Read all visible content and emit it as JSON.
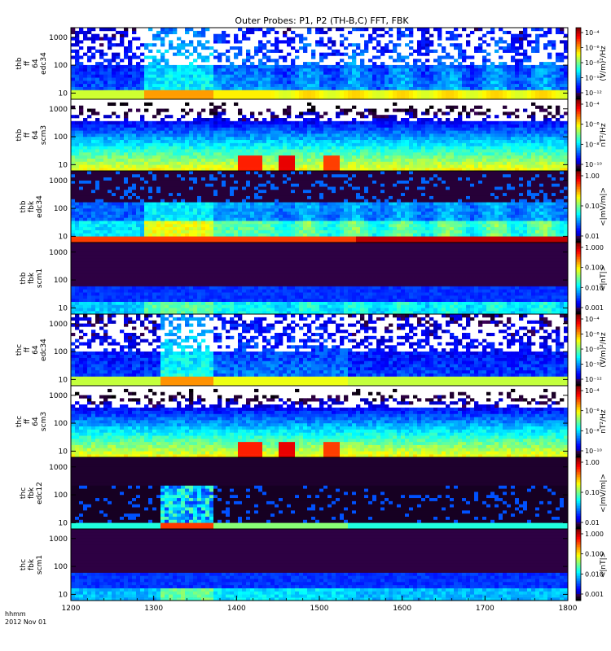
{
  "chart_data": {
    "type": "heatmap",
    "title": "Outer Probes: P1, P2 (TH-B,C) FFT, FBK",
    "x_axis": {
      "range": [
        1200,
        1800
      ],
      "ticks": [
        "1200",
        "1300",
        "1400",
        "1500",
        "1600",
        "1700",
        "1800"
      ],
      "label_line1": "hhmm",
      "label_line2": "2012 Nov 01"
    },
    "panels": [
      {
        "label": [
          "thb",
          "ff",
          "64",
          "edc34"
        ],
        "y_ticks": [
          "1000",
          "100",
          "10"
        ],
        "y_scale": "log",
        "cbar_ticks": [
          "10⁻⁴",
          "10⁻⁶",
          "10⁻⁸",
          "10⁻¹⁰",
          "10⁻¹²"
        ],
        "cbar_label": "(V/m)²/Hz",
        "cbar_scale": "log",
        "style": "efield"
      },
      {
        "label": [
          "thb",
          "ff",
          "64",
          "scm3"
        ],
        "y_ticks": [
          "1000",
          "100",
          "10"
        ],
        "y_scale": "log",
        "cbar_ticks": [
          "10⁻⁴",
          "10⁻⁶",
          "10⁻⁸",
          "10⁻¹⁰"
        ],
        "cbar_label": "nT²/Hz",
        "cbar_scale": "log",
        "style": "scm"
      },
      {
        "label": [
          "thb",
          "fbk",
          "edc34"
        ],
        "y_ticks": [
          "1000",
          "100",
          "10"
        ],
        "y_scale": "log",
        "cbar_ticks": [
          "1.00",
          "0.10",
          "0.01"
        ],
        "cbar_label": "<|mV/m|>",
        "cbar_scale": "log",
        "style": "fbk_e"
      },
      {
        "label": [
          "thb",
          "fbk",
          "scm1"
        ],
        "y_ticks": [
          "1000",
          "100",
          "10"
        ],
        "y_scale": "log",
        "cbar_ticks": [
          "1.000",
          "0.100",
          "0.010",
          "0.001"
        ],
        "cbar_label": "<|nT|>",
        "cbar_scale": "log",
        "style": "fbk_b"
      },
      {
        "label": [
          "thc",
          "ff",
          "64",
          "edc34"
        ],
        "y_ticks": [
          "1000",
          "100",
          "10"
        ],
        "y_scale": "log",
        "cbar_ticks": [
          "10⁻⁴",
          "10⁻⁶",
          "10⁻⁸",
          "10⁻¹⁰",
          "10⁻¹²"
        ],
        "cbar_label": "(V/m)²/Hz",
        "cbar_scale": "log",
        "style": "efield"
      },
      {
        "label": [
          "thc",
          "ff",
          "64",
          "scm3"
        ],
        "y_ticks": [
          "1000",
          "100",
          "10"
        ],
        "y_scale": "log",
        "cbar_ticks": [
          "10⁻⁴",
          "10⁻⁶",
          "10⁻⁸",
          "10⁻¹⁰"
        ],
        "cbar_label": "nT²/Hz",
        "cbar_scale": "log",
        "style": "scm"
      },
      {
        "label": [
          "thc",
          "fbk",
          "edc12"
        ],
        "y_ticks": [
          "1000",
          "100",
          "10"
        ],
        "y_scale": "log",
        "cbar_ticks": [
          "1.00",
          "0.10",
          "0.01"
        ],
        "cbar_label": "<|mV/m|>",
        "cbar_scale": "log",
        "style": "fbk_e_c"
      },
      {
        "label": [
          "thc",
          "fbk",
          "scm1"
        ],
        "y_ticks": [
          "1000",
          "100",
          "10"
        ],
        "y_scale": "log",
        "cbar_ticks": [
          "1.000",
          "0.100",
          "0.010",
          "0.001"
        ],
        "cbar_label": "<|nT|>",
        "cbar_scale": "log",
        "style": "fbk_b"
      }
    ]
  }
}
